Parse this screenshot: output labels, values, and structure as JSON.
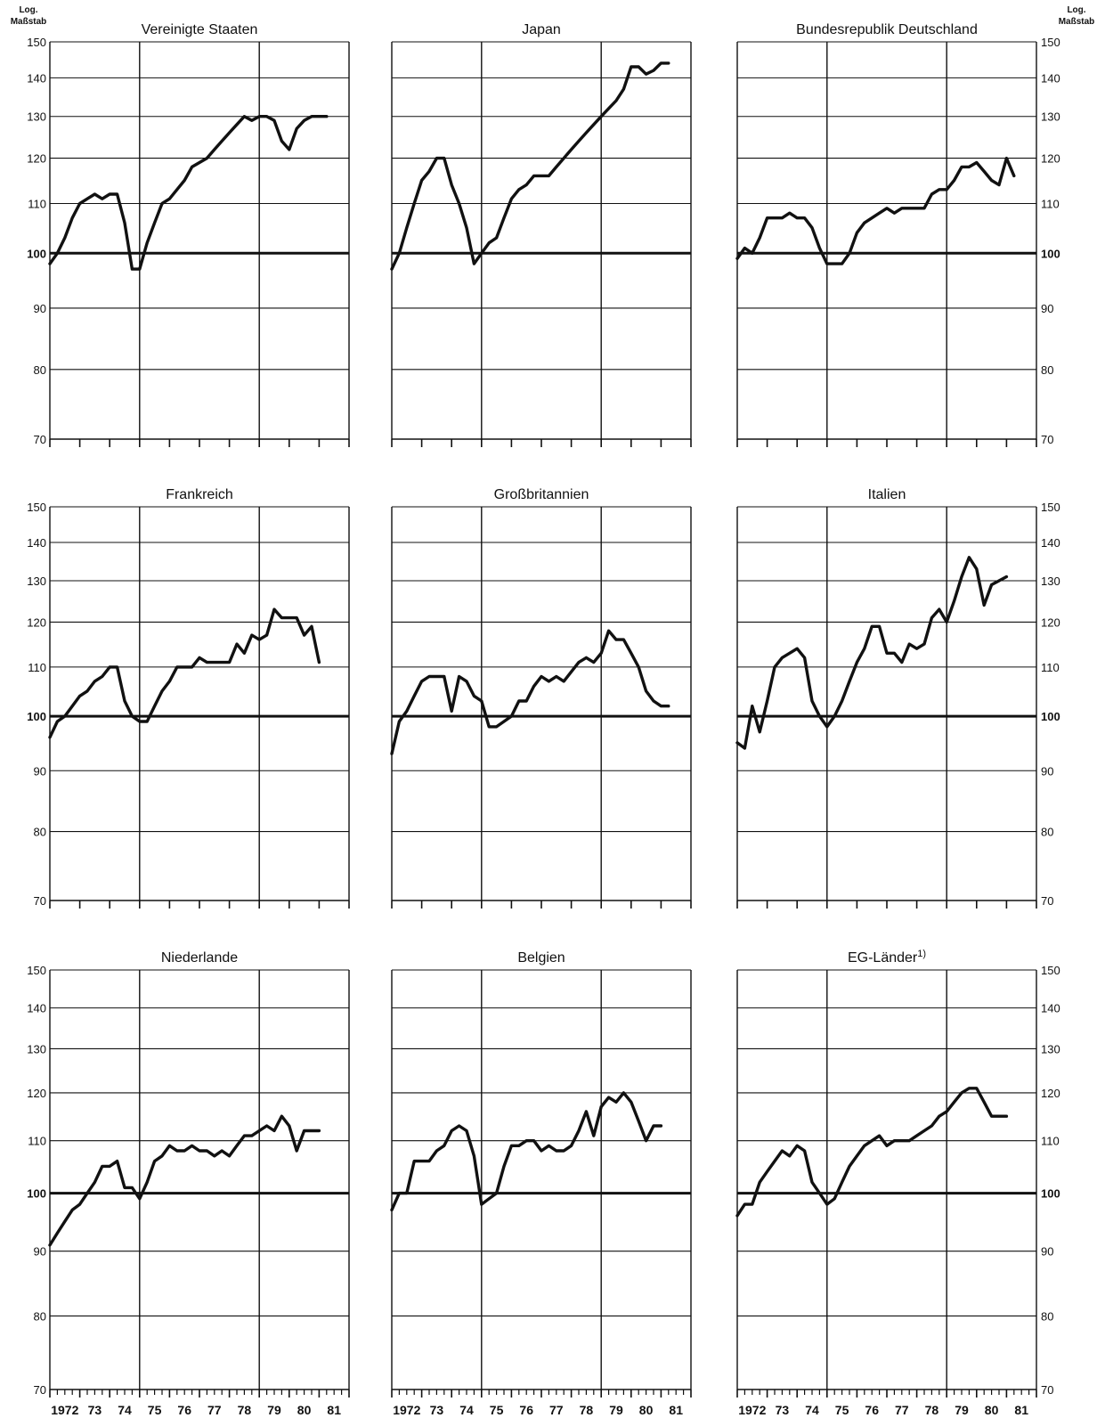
{
  "figure": {
    "scale_label_line1": "Log.",
    "scale_label_line2": "Maßstab",
    "y_ticks": [
      150,
      140,
      130,
      120,
      110,
      100,
      90,
      80,
      70
    ],
    "x_labels": [
      "1972",
      "73",
      "74",
      "75",
      "76",
      "77",
      "78",
      "79",
      "80",
      "81"
    ]
  },
  "chart_data": [
    {
      "type": "line",
      "title": "Vereinigte Staaten",
      "scale": "log",
      "ylim": [
        70,
        150
      ],
      "x_range": [
        1972.0,
        1982.0
      ],
      "grid": true,
      "series": [
        {
          "x": [
            1972.0,
            1972.25,
            1972.5,
            1972.75,
            1973.0,
            1973.25,
            1973.5,
            1973.75,
            1974.0,
            1974.25,
            1974.5,
            1974.75,
            1975.0,
            1975.25,
            1975.5,
            1975.75,
            1976.0,
            1976.25,
            1976.5,
            1976.75,
            1977.0,
            1977.25,
            1977.5,
            1977.75,
            1978.0,
            1978.25,
            1978.5,
            1978.75,
            1979.0,
            1979.25,
            1979.5,
            1979.75,
            1980.0,
            1980.25,
            1980.5,
            1980.75,
            1981.0,
            1981.25
          ],
          "values": [
            98,
            100,
            103,
            107,
            110,
            111,
            112,
            111,
            112,
            112,
            106,
            97,
            97,
            102,
            106,
            110,
            111,
            113,
            115,
            118,
            119,
            120,
            122,
            124,
            126,
            128,
            130,
            129,
            130,
            130,
            129,
            124,
            122,
            127,
            129,
            130,
            130,
            130
          ]
        }
      ]
    },
    {
      "type": "line",
      "title": "Japan",
      "scale": "log",
      "ylim": [
        70,
        150
      ],
      "x_range": [
        1972.0,
        1982.0
      ],
      "grid": true,
      "series": [
        {
          "x": [
            1972.0,
            1972.25,
            1972.5,
            1972.75,
            1973.0,
            1973.25,
            1973.5,
            1973.75,
            1974.0,
            1974.25,
            1974.5,
            1974.75,
            1975.0,
            1975.25,
            1975.5,
            1975.75,
            1976.0,
            1976.25,
            1976.5,
            1976.75,
            1977.0,
            1977.25,
            1977.5,
            1977.75,
            1978.0,
            1978.25,
            1978.5,
            1978.75,
            1979.0,
            1979.25,
            1979.5,
            1979.75,
            1980.0,
            1980.25,
            1980.5,
            1980.75,
            1981.0,
            1981.25
          ],
          "values": [
            97,
            100,
            105,
            110,
            115,
            117,
            120,
            120,
            114,
            110,
            105,
            98,
            100,
            102,
            103,
            107,
            111,
            113,
            114,
            116,
            116,
            116,
            118,
            120,
            122,
            124,
            126,
            128,
            130,
            132,
            134,
            137,
            143,
            143,
            141,
            142,
            144,
            144
          ]
        }
      ]
    },
    {
      "type": "line",
      "title": "Bundesrepublik Deutschland",
      "scale": "log",
      "ylim": [
        70,
        150
      ],
      "x_range": [
        1972.0,
        1982.0
      ],
      "grid": true,
      "series": [
        {
          "x": [
            1972.0,
            1972.25,
            1972.5,
            1972.75,
            1973.0,
            1973.25,
            1973.5,
            1973.75,
            1974.0,
            1974.25,
            1974.5,
            1974.75,
            1975.0,
            1975.25,
            1975.5,
            1975.75,
            1976.0,
            1976.25,
            1976.5,
            1976.75,
            1977.0,
            1977.25,
            1977.5,
            1977.75,
            1978.0,
            1978.25,
            1978.5,
            1978.75,
            1979.0,
            1979.25,
            1979.5,
            1979.75,
            1980.0,
            1980.25,
            1980.5,
            1980.75,
            1981.0,
            1981.25
          ],
          "values": [
            99,
            101,
            100,
            103,
            107,
            107,
            107,
            108,
            107,
            107,
            105,
            101,
            98,
            98,
            98,
            100,
            104,
            106,
            107,
            108,
            109,
            108,
            109,
            109,
            109,
            109,
            112,
            113,
            113,
            115,
            118,
            118,
            119,
            117,
            115,
            114,
            120,
            116
          ]
        }
      ]
    },
    {
      "type": "line",
      "title": "Frankreich",
      "scale": "log",
      "ylim": [
        70,
        150
      ],
      "x_range": [
        1972.0,
        1982.0
      ],
      "grid": true,
      "series": [
        {
          "x": [
            1972.0,
            1972.25,
            1972.5,
            1972.75,
            1973.0,
            1973.25,
            1973.5,
            1973.75,
            1974.0,
            1974.25,
            1974.5,
            1974.75,
            1975.0,
            1975.25,
            1975.5,
            1975.75,
            1976.0,
            1976.25,
            1976.5,
            1976.75,
            1977.0,
            1977.25,
            1977.5,
            1977.75,
            1978.0,
            1978.25,
            1978.5,
            1978.75,
            1979.0,
            1979.25,
            1979.5,
            1979.75,
            1980.0,
            1980.25,
            1980.5,
            1980.75,
            1981.0
          ],
          "values": [
            96,
            99,
            100,
            102,
            104,
            105,
            107,
            108,
            110,
            110,
            103,
            100,
            99,
            99,
            102,
            105,
            107,
            110,
            110,
            110,
            112,
            111,
            111,
            111,
            111,
            115,
            113,
            117,
            116,
            117,
            123,
            121,
            121,
            121,
            117,
            119,
            111
          ]
        }
      ]
    },
    {
      "type": "line",
      "title": "Großbritannien",
      "scale": "log",
      "ylim": [
        70,
        150
      ],
      "x_range": [
        1972.0,
        1982.0
      ],
      "grid": true,
      "series": [
        {
          "x": [
            1972.0,
            1972.25,
            1972.5,
            1972.75,
            1973.0,
            1973.25,
            1973.5,
            1973.75,
            1974.0,
            1974.25,
            1974.5,
            1974.75,
            1975.0,
            1975.25,
            1975.5,
            1975.75,
            1976.0,
            1976.25,
            1976.5,
            1976.75,
            1977.0,
            1977.25,
            1977.5,
            1977.75,
            1978.0,
            1978.25,
            1978.5,
            1978.75,
            1979.0,
            1979.25,
            1979.5,
            1979.75,
            1980.0,
            1980.25,
            1980.5,
            1980.75,
            1981.0,
            1981.25
          ],
          "values": [
            93,
            99,
            101,
            104,
            107,
            108,
            108,
            108,
            101,
            108,
            107,
            104,
            103,
            98,
            98,
            99,
            100,
            103,
            103,
            106,
            108,
            107,
            108,
            107,
            109,
            111,
            112,
            111,
            113,
            118,
            116,
            116,
            113,
            110,
            105,
            103,
            102,
            102
          ]
        }
      ]
    },
    {
      "type": "line",
      "title": "Italien",
      "scale": "log",
      "ylim": [
        70,
        150
      ],
      "x_range": [
        1972.0,
        1982.0
      ],
      "grid": true,
      "series": [
        {
          "x": [
            1972.0,
            1972.25,
            1972.5,
            1972.75,
            1973.0,
            1973.25,
            1973.5,
            1973.75,
            1974.0,
            1974.25,
            1974.5,
            1974.75,
            1975.0,
            1975.25,
            1975.5,
            1975.75,
            1976.0,
            1976.25,
            1976.5,
            1976.75,
            1977.0,
            1977.25,
            1977.5,
            1977.75,
            1978.0,
            1978.25,
            1978.5,
            1978.75,
            1979.0,
            1979.25,
            1979.5,
            1979.75,
            1980.0,
            1980.25,
            1980.5,
            1980.75,
            1981.0
          ],
          "values": [
            95,
            94,
            102,
            97,
            103,
            110,
            112,
            113,
            114,
            112,
            103,
            100,
            98,
            100,
            103,
            107,
            111,
            114,
            119,
            119,
            113,
            113,
            111,
            115,
            114,
            115,
            121,
            123,
            120,
            125,
            131,
            136,
            133,
            124,
            129,
            130,
            131
          ]
        }
      ]
    },
    {
      "type": "line",
      "title": "Niederlande",
      "scale": "log",
      "ylim": [
        70,
        150
      ],
      "x_range": [
        1972.0,
        1982.0
      ],
      "grid": true,
      "series": [
        {
          "x": [
            1972.0,
            1972.25,
            1972.5,
            1972.75,
            1973.0,
            1973.25,
            1973.5,
            1973.75,
            1974.0,
            1974.25,
            1974.5,
            1974.75,
            1975.0,
            1975.25,
            1975.5,
            1975.75,
            1976.0,
            1976.25,
            1976.5,
            1976.75,
            1977.0,
            1977.25,
            1977.5,
            1977.75,
            1978.0,
            1978.25,
            1978.5,
            1978.75,
            1979.0,
            1979.25,
            1979.5,
            1979.75,
            1980.0,
            1980.25,
            1980.5,
            1980.75,
            1981.0
          ],
          "values": [
            91,
            93,
            95,
            97,
            98,
            100,
            102,
            105,
            105,
            106,
            101,
            101,
            99,
            102,
            106,
            107,
            109,
            108,
            108,
            109,
            108,
            108,
            107,
            108,
            107,
            109,
            111,
            111,
            112,
            113,
            112,
            115,
            113,
            108,
            112,
            112,
            112
          ]
        }
      ]
    },
    {
      "type": "line",
      "title": "Belgien",
      "scale": "log",
      "ylim": [
        70,
        150
      ],
      "x_range": [
        1972.0,
        1982.0
      ],
      "grid": true,
      "series": [
        {
          "x": [
            1972.0,
            1972.25,
            1972.5,
            1972.75,
            1973.0,
            1973.25,
            1973.5,
            1973.75,
            1974.0,
            1974.25,
            1974.5,
            1974.75,
            1975.0,
            1975.25,
            1975.5,
            1975.75,
            1976.0,
            1976.25,
            1976.5,
            1976.75,
            1977.0,
            1977.25,
            1977.5,
            1977.75,
            1978.0,
            1978.25,
            1978.5,
            1978.75,
            1979.0,
            1979.25,
            1979.5,
            1979.75,
            1980.0,
            1980.25,
            1980.5,
            1980.75,
            1981.0
          ],
          "values": [
            97,
            100,
            100,
            106,
            106,
            106,
            108,
            109,
            112,
            113,
            112,
            107,
            98,
            99,
            100,
            105,
            109,
            109,
            110,
            110,
            108,
            109,
            108,
            108,
            109,
            112,
            116,
            111,
            117,
            119,
            118,
            120,
            118,
            114,
            110,
            113,
            113
          ]
        }
      ]
    },
    {
      "type": "line",
      "title": "EG-Länder",
      "title_footnote": "1)",
      "scale": "log",
      "ylim": [
        70,
        150
      ],
      "x_range": [
        1972.0,
        1982.0
      ],
      "grid": true,
      "series": [
        {
          "x": [
            1972.0,
            1972.25,
            1972.5,
            1972.75,
            1973.0,
            1973.25,
            1973.5,
            1973.75,
            1974.0,
            1974.25,
            1974.5,
            1974.75,
            1975.0,
            1975.25,
            1975.5,
            1975.75,
            1976.0,
            1976.25,
            1976.5,
            1976.75,
            1977.0,
            1977.25,
            1977.5,
            1977.75,
            1978.0,
            1978.25,
            1978.5,
            1978.75,
            1979.0,
            1979.25,
            1979.5,
            1979.75,
            1980.0,
            1980.25,
            1980.5,
            1980.75,
            1981.0
          ],
          "values": [
            96,
            98,
            98,
            102,
            104,
            106,
            108,
            107,
            109,
            108,
            102,
            100,
            98,
            99,
            102,
            105,
            107,
            109,
            110,
            111,
            109,
            110,
            110,
            110,
            111,
            112,
            113,
            115,
            116,
            118,
            120,
            121,
            121,
            118,
            115,
            115,
            115
          ]
        }
      ]
    }
  ]
}
